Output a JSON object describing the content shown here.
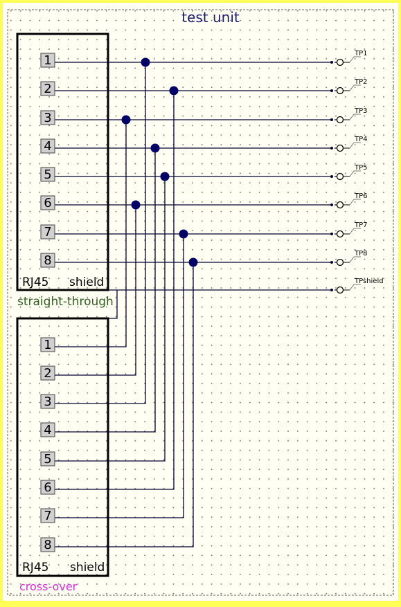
{
  "title": "test unit",
  "connector_top": {
    "name_label": "RJ45",
    "shield_label": "shield",
    "caption": "straight-through",
    "pins": [
      "1",
      "2",
      "3",
      "4",
      "5",
      "6",
      "7",
      "8"
    ]
  },
  "connector_bottom": {
    "name_label": "RJ45",
    "shield_label": "shield",
    "caption": "cross-over",
    "pins": [
      "1",
      "2",
      "3",
      "4",
      "5",
      "6",
      "7",
      "8"
    ]
  },
  "test_points": [
    "TP1",
    "TP2",
    "TP3",
    "TP4",
    "TP5",
    "TP6",
    "TP7",
    "TP8",
    "TPshield"
  ],
  "crossover_map": [
    {
      "bottom_pin": "1",
      "top_pin": "3"
    },
    {
      "bottom_pin": "2",
      "top_pin": "6"
    },
    {
      "bottom_pin": "3",
      "top_pin": "1"
    },
    {
      "bottom_pin": "4",
      "top_pin": "4"
    },
    {
      "bottom_pin": "5",
      "top_pin": "5"
    },
    {
      "bottom_pin": "6",
      "top_pin": "2"
    },
    {
      "bottom_pin": "7",
      "top_pin": "7"
    },
    {
      "bottom_pin": "8",
      "top_pin": "8"
    }
  ],
  "colors": {
    "background": "#fffff4",
    "frame": "#ffff55",
    "title": "#1a1a6e",
    "straight_caption": "#2e5e1e",
    "crossover_caption": "#d22fd2",
    "wire": "#000033",
    "junction": "#000066",
    "pin_fill": "#d0d0d0"
  }
}
